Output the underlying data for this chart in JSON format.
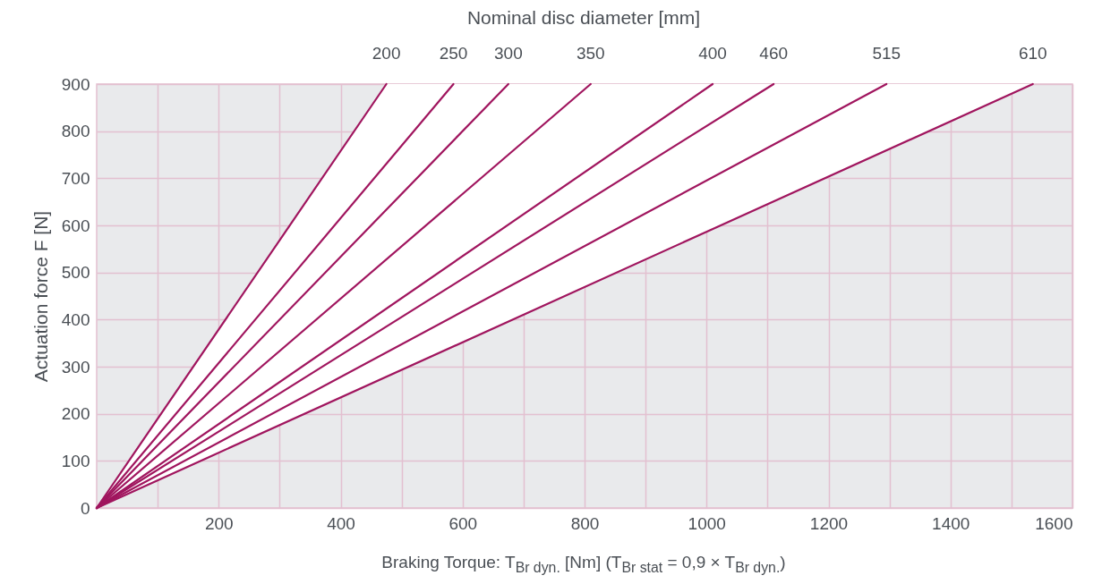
{
  "chart_data": {
    "type": "line",
    "xlabel": "Braking Torque:  T$_{Br dyn.}$ [Nm] (T$_{Br stat}$ = 0,9 × T$_{Br dyn.}$)",
    "ylabel": "Actuation force F [N]",
    "x2label": "Nominal disc diameter [mm]",
    "series": [
      {
        "name": "200",
        "color": "#a0155e",
        "x": [
          0,
          475
        ],
        "values": [
          0,
          900
        ]
      },
      {
        "name": "250",
        "color": "#a0155e",
        "x": [
          0,
          585
        ],
        "values": [
          0,
          900
        ]
      },
      {
        "name": "300",
        "color": "#a0155e",
        "x": [
          0,
          675
        ],
        "values": [
          0,
          900
        ]
      },
      {
        "name": "350",
        "color": "#a0155e",
        "x": [
          0,
          810
        ],
        "values": [
          0,
          900
        ]
      },
      {
        "name": "400",
        "color": "#a0155e",
        "x": [
          0,
          1010
        ],
        "values": [
          0,
          900
        ]
      },
      {
        "name": "460",
        "color": "#a0155e",
        "x": [
          0,
          1110
        ],
        "values": [
          0,
          900
        ]
      },
      {
        "name": "515",
        "color": "#a0155e",
        "x": [
          0,
          1295
        ],
        "values": [
          0,
          900
        ]
      },
      {
        "name": "610",
        "color": "#a0155e",
        "x": [
          0,
          1535
        ],
        "values": [
          0,
          900
        ]
      }
    ],
    "xlim": [
      0,
      1600
    ],
    "ylim": [
      0,
      900
    ],
    "xticks": [
      {
        "value": 100,
        "label": null
      },
      200,
      {
        "value": 300,
        "label": null
      },
      400,
      {
        "value": 500,
        "label": null
      },
      600,
      {
        "value": 700,
        "label": null
      },
      800,
      {
        "value": 900,
        "label": null
      },
      1000,
      {
        "value": 1100,
        "label": null
      },
      1200,
      {
        "value": 1300,
        "label": null
      },
      1400,
      {
        "value": 1500,
        "label": null
      },
      1600
    ],
    "yticks": [
      0,
      100,
      200,
      300,
      400,
      500,
      600,
      700,
      800,
      900
    ],
    "grid": true,
    "legend": false,
    "marker": "none",
    "line_style": "solid"
  }
}
